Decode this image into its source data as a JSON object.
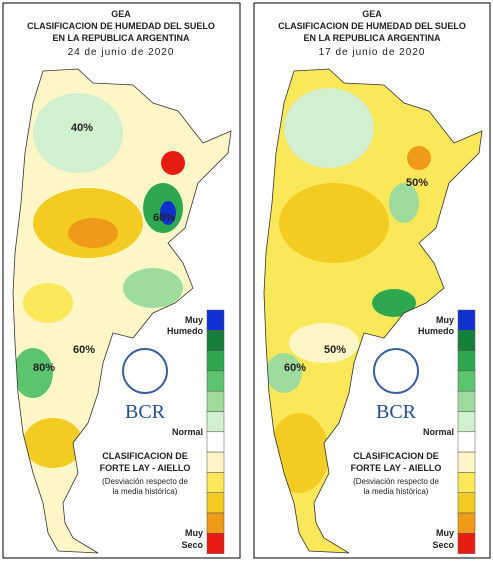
{
  "panels": [
    {
      "org": "GEA",
      "title_1": "CLASIFICACION DE HUMEDAD DEL SUELO",
      "title_2": "EN LA REPUBLICA ARGENTINA",
      "date": "24 de junio de 2020",
      "contour_labels": [
        "40%",
        "60%",
        "80%",
        "60%"
      ],
      "legend_top": [
        "Muy",
        "Humedo"
      ],
      "legend_mid": "Normal",
      "legend_bottom": [
        "Muy",
        "Seco"
      ],
      "logo": "BCR",
      "method_1": "CLASIFICACION DE",
      "method_2": "FORTE LAY - AIELLO",
      "note_1": "(Desviación respecto de",
      "note_2": "la media histórica)"
    },
    {
      "org": "GEA",
      "title_1": "CLASIFICACION DE HUMEDAD DEL SUELO",
      "title_2": "EN LA REPUBLICA ARGENTINA",
      "date": "17 de junio de 2020",
      "contour_labels": [
        "50%",
        "50%",
        "60%"
      ],
      "legend_top": [
        "Muy",
        "Humedo"
      ],
      "legend_mid": "Normal",
      "legend_bottom": [
        "Muy",
        "Seco"
      ],
      "logo": "BCR",
      "method_1": "CLASIFICACION DE",
      "method_2": "FORTE LAY - AIELLO",
      "note_1": "(Desviación respecto de",
      "note_2": "la media histórica)"
    }
  ],
  "legend_colors": [
    "#1030d0",
    "#14803a",
    "#2ea84f",
    "#5cc46e",
    "#9ddc9d",
    "#d2efd0",
    "#ffffff",
    "#fff6c8",
    "#fbe85a",
    "#f2cc22",
    "#ef9a18",
    "#e81c10"
  ]
}
